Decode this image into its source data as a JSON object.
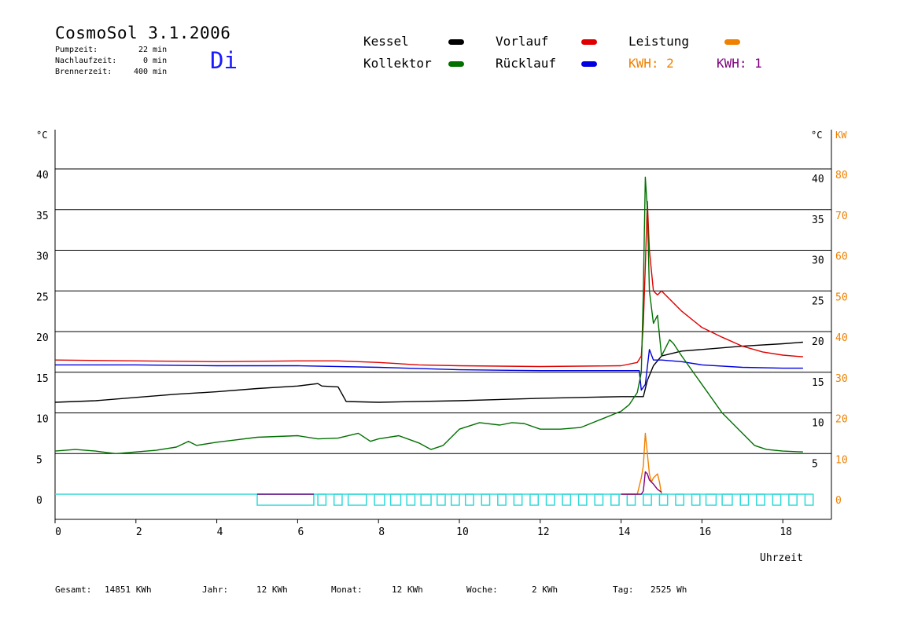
{
  "header": {
    "title": "CosmoSol 3.1.2006",
    "day": "Di",
    "pump_label": "Pumpzeit:",
    "pump_value": "22 min",
    "nachlauf_label": "Nachlaufzeit:",
    "nachlauf_value": "0 min",
    "brenner_label": "Brennerzeit:",
    "brenner_value": "400 min"
  },
  "legend": {
    "kessel": "Kessel",
    "kollektor": "Kollektor",
    "vorlauf": "Vorlauf",
    "ruecklauf": "Rücklauf",
    "leistung": "Leistung",
    "kwh_a": "KWH: 2",
    "kwh_b": "KWH: 1"
  },
  "colors": {
    "kessel": "#000000",
    "kollektor": "#007000",
    "vorlauf": "#e00000",
    "ruecklauf": "#0000e0",
    "leistung": "#f08000",
    "kwh_b": "#800080",
    "pump": "#30d8d8",
    "day": "#1a1aff"
  },
  "footer": {
    "gesamt_label": "Gesamt:",
    "gesamt_value": "14851 KWh",
    "jahr_label": "Jahr:",
    "jahr_value": "12 KWh",
    "monat_label": "Monat:",
    "monat_value": "12 KWh",
    "woche_label": "Woche:",
    "woche_value": "2 KWh",
    "tag_label": "Tag:",
    "tag_value": "2525 Wh"
  },
  "chart_data": {
    "type": "line",
    "xlabel": "Uhrzeit",
    "ylabel_left": "°C",
    "ylabel_right": "°C",
    "ylabel_right2": "KW",
    "xlim": [
      0,
      19.5
    ],
    "ylim": [
      -2,
      45
    ],
    "grid": "horizontal",
    "x_ticks": [
      0,
      2,
      4,
      6,
      8,
      10,
      12,
      14,
      16,
      18
    ],
    "y_ticks": [
      0,
      5,
      10,
      15,
      20,
      25,
      30,
      35,
      40
    ],
    "y_ticks_right": [
      5,
      10,
      15,
      20,
      25,
      30,
      35,
      40
    ],
    "kw_ticks": [
      0,
      10,
      20,
      30,
      40,
      50,
      60,
      70,
      80
    ],
    "series": [
      {
        "name": "Kessel",
        "color_key": "kessel",
        "x": [
          0,
          1,
          2,
          3,
          4,
          5,
          6,
          6.5,
          6.6,
          7.0,
          7.2,
          8,
          10,
          12,
          14,
          14.55,
          14.65,
          14.8,
          15.0,
          15.5,
          16,
          17,
          18,
          18.5
        ],
        "y": [
          11.3,
          11.5,
          11.9,
          12.3,
          12.6,
          13.0,
          13.3,
          13.6,
          13.3,
          13.2,
          11.4,
          11.3,
          11.5,
          11.8,
          12.0,
          12.0,
          14.0,
          15.8,
          17.0,
          17.6,
          17.8,
          18.2,
          18.5,
          18.7
        ]
      },
      {
        "name": "Vorlauf",
        "color_key": "vorlauf",
        "x": [
          0,
          2,
          4,
          6,
          7,
          8,
          9,
          10,
          12,
          14,
          14.4,
          14.5,
          14.55,
          14.6,
          14.65,
          14.7,
          14.8,
          14.9,
          15.0,
          15.2,
          15.5,
          16,
          16.5,
          17,
          17.5,
          18,
          18.5
        ],
        "y": [
          16.5,
          16.4,
          16.3,
          16.4,
          16.4,
          16.2,
          15.9,
          15.8,
          15.7,
          15.8,
          16.2,
          17.0,
          21.0,
          28.0,
          36.0,
          30.0,
          25.0,
          24.5,
          25.0,
          24.0,
          22.5,
          20.5,
          19.3,
          18.2,
          17.5,
          17.1,
          16.9
        ]
      },
      {
        "name": "Rücklauf",
        "color_key": "ruecklauf",
        "x": [
          0,
          2,
          4,
          6,
          8,
          10,
          12,
          14.3,
          14.45,
          14.5,
          14.6,
          14.7,
          14.8,
          15.0,
          15.5,
          16,
          17,
          18,
          18.5
        ],
        "y": [
          15.9,
          15.9,
          15.8,
          15.8,
          15.6,
          15.3,
          15.2,
          15.2,
          15.2,
          12.8,
          13.5,
          17.8,
          16.5,
          16.5,
          16.3,
          15.9,
          15.6,
          15.5,
          15.5
        ]
      },
      {
        "name": "Kollektor",
        "color_key": "kollektor",
        "x": [
          0,
          0.5,
          1,
          1.5,
          2,
          2.5,
          3,
          3.3,
          3.5,
          4,
          4.5,
          5,
          5.5,
          6,
          6.5,
          7,
          7.5,
          7.8,
          8,
          8.5,
          9,
          9.3,
          9.6,
          10,
          10.5,
          11,
          11.3,
          11.6,
          12,
          12.5,
          13,
          13.5,
          14,
          14.2,
          14.4,
          14.5,
          14.55,
          14.6,
          14.65,
          14.7,
          14.8,
          14.9,
          15.0,
          15.2,
          15.3,
          15.5,
          16,
          16.5,
          17,
          17.3,
          17.6,
          18,
          18.5
        ],
        "y": [
          5.3,
          5.5,
          5.3,
          5.0,
          5.2,
          5.4,
          5.8,
          6.5,
          6.0,
          6.4,
          6.7,
          7.0,
          7.1,
          7.2,
          6.8,
          6.9,
          7.5,
          6.5,
          6.8,
          7.2,
          6.3,
          5.5,
          6.0,
          8.0,
          8.8,
          8.5,
          8.8,
          8.7,
          8.0,
          8.0,
          8.2,
          9.2,
          10.2,
          11.0,
          12.5,
          15.0,
          25.0,
          39.0,
          35.0,
          25.0,
          21.0,
          22.0,
          17.0,
          19.0,
          18.5,
          17.0,
          13.5,
          10.0,
          7.5,
          6.0,
          5.5,
          5.3,
          5.2
        ]
      },
      {
        "name": "Leistung",
        "color_key": "leistung",
        "x": [
          14.0,
          14.4,
          14.5,
          14.55,
          14.6,
          14.65,
          14.7,
          14.75,
          14.8,
          14.9,
          14.95,
          15.0
        ],
        "y": [
          0,
          0,
          4,
          7,
          15,
          10,
          5,
          3,
          4,
          5,
          3,
          0
        ]
      },
      {
        "name": "KWH",
        "color_key": "kwh_b",
        "x": [
          14.0,
          14.5,
          14.55,
          14.6,
          14.65,
          14.7,
          14.8,
          14.9,
          15.0
        ],
        "y": [
          0,
          0,
          0.8,
          5.5,
          5.0,
          3.5,
          2.5,
          1.2,
          0.5
        ]
      }
    ],
    "pump_intervals": [
      [
        5.0,
        6.4
      ],
      [
        6.5,
        6.7
      ],
      [
        6.9,
        7.1
      ],
      [
        7.25,
        7.7
      ],
      [
        7.9,
        8.15
      ],
      [
        8.3,
        8.55
      ],
      [
        8.7,
        8.9
      ],
      [
        9.05,
        9.3
      ],
      [
        9.45,
        9.65
      ],
      [
        9.8,
        10.0
      ],
      [
        10.15,
        10.35
      ],
      [
        10.55,
        10.75
      ],
      [
        10.95,
        11.15
      ],
      [
        11.35,
        11.55
      ],
      [
        11.75,
        11.95
      ],
      [
        12.15,
        12.35
      ],
      [
        12.55,
        12.75
      ],
      [
        12.95,
        13.15
      ],
      [
        13.35,
        13.55
      ],
      [
        13.75,
        13.95
      ],
      [
        14.15,
        14.35
      ],
      [
        14.55,
        14.75
      ],
      [
        14.95,
        15.15
      ],
      [
        15.35,
        15.55
      ],
      [
        15.75,
        15.95
      ],
      [
        16.1,
        16.35
      ],
      [
        16.5,
        16.75
      ],
      [
        16.95,
        17.15
      ],
      [
        17.35,
        17.55
      ],
      [
        17.75,
        17.95
      ],
      [
        18.15,
        18.35
      ],
      [
        18.55,
        18.75
      ]
    ]
  }
}
